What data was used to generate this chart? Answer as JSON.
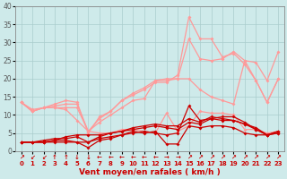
{
  "title": "",
  "xlabel": "Vent moyen/en rafales ( km/h )",
  "xlim": [
    -0.5,
    23.5
  ],
  "ylim": [
    0,
    40
  ],
  "yticks": [
    0,
    5,
    10,
    15,
    20,
    25,
    30,
    35,
    40
  ],
  "xticks": [
    0,
    1,
    2,
    3,
    4,
    5,
    6,
    7,
    8,
    9,
    10,
    11,
    12,
    13,
    14,
    15,
    16,
    17,
    18,
    19,
    20,
    21,
    22,
    23
  ],
  "bg_color": "#ceeaea",
  "grid_color": "#aacccc",
  "x": [
    0,
    1,
    2,
    3,
    4,
    5,
    6,
    7,
    8,
    9,
    10,
    11,
    12,
    13,
    14,
    15,
    16,
    17,
    18,
    19,
    20,
    21,
    22,
    23
  ],
  "lines_dark": [
    [
      2.5,
      2.5,
      2.5,
      3.0,
      3.0,
      2.5,
      2.5,
      3.5,
      4.0,
      4.5,
      5.0,
      5.5,
      5.0,
      4.5,
      5.0,
      12.5,
      8.5,
      9.0,
      9.5,
      9.5,
      8.0,
      6.0,
      4.5,
      5.5
    ],
    [
      2.5,
      2.5,
      2.5,
      2.5,
      2.5,
      2.5,
      1.0,
      3.0,
      3.5,
      4.5,
      5.5,
      5.0,
      5.5,
      2.0,
      2.0,
      7.0,
      6.5,
      7.0,
      7.0,
      6.5,
      5.0,
      4.5,
      4.5,
      5.0
    ],
    [
      2.5,
      2.5,
      3.0,
      3.5,
      3.5,
      4.0,
      2.5,
      4.0,
      5.0,
      5.5,
      6.0,
      6.5,
      7.0,
      6.5,
      6.0,
      8.0,
      7.5,
      9.0,
      8.5,
      8.5,
      7.5,
      6.0,
      4.5,
      5.5
    ],
    [
      2.5,
      2.5,
      2.5,
      3.0,
      4.0,
      4.5,
      4.5,
      4.5,
      5.0,
      5.5,
      6.5,
      7.0,
      7.5,
      7.0,
      7.0,
      9.0,
      8.0,
      9.5,
      9.0,
      8.5,
      7.5,
      6.5,
      4.5,
      5.0
    ]
  ],
  "lines_light": [
    [
      13.5,
      11.0,
      12.0,
      12.0,
      11.5,
      8.5,
      5.5,
      5.0,
      5.0,
      6.0,
      6.0,
      5.5,
      5.0,
      10.5,
      5.5,
      7.0,
      11.0,
      10.5,
      10.5,
      10.0,
      6.0,
      6.0,
      5.0,
      5.5
    ],
    [
      13.5,
      11.0,
      12.0,
      12.0,
      12.0,
      12.0,
      5.5,
      8.0,
      10.0,
      12.0,
      14.0,
      14.5,
      19.5,
      19.5,
      20.0,
      20.0,
      17.0,
      15.0,
      14.0,
      13.0,
      25.0,
      19.5,
      13.5,
      20.0
    ],
    [
      13.5,
      11.0,
      12.0,
      13.0,
      14.0,
      13.5,
      5.0,
      9.5,
      11.0,
      14.0,
      16.0,
      17.5,
      19.5,
      20.0,
      20.0,
      31.0,
      25.5,
      25.0,
      25.5,
      27.5,
      25.0,
      24.5,
      19.5,
      27.5
    ],
    [
      13.5,
      11.5,
      12.0,
      12.5,
      13.0,
      13.0,
      5.5,
      9.0,
      11.0,
      14.0,
      15.5,
      17.0,
      19.0,
      19.0,
      21.0,
      37.0,
      31.0,
      31.0,
      26.0,
      27.0,
      24.0,
      19.5,
      13.5,
      20.0
    ]
  ],
  "dark_color": "#cc0000",
  "light_color": "#ff9999",
  "arrows": [
    "↗",
    "↙",
    "↙",
    "↑",
    "↑",
    "↓",
    "↓",
    "←",
    "←",
    "←",
    "←",
    "←",
    "←",
    "→",
    "→",
    "↗",
    "↗",
    "↗",
    "↗",
    "↗",
    "↗",
    "↗",
    "↗",
    "↗"
  ]
}
